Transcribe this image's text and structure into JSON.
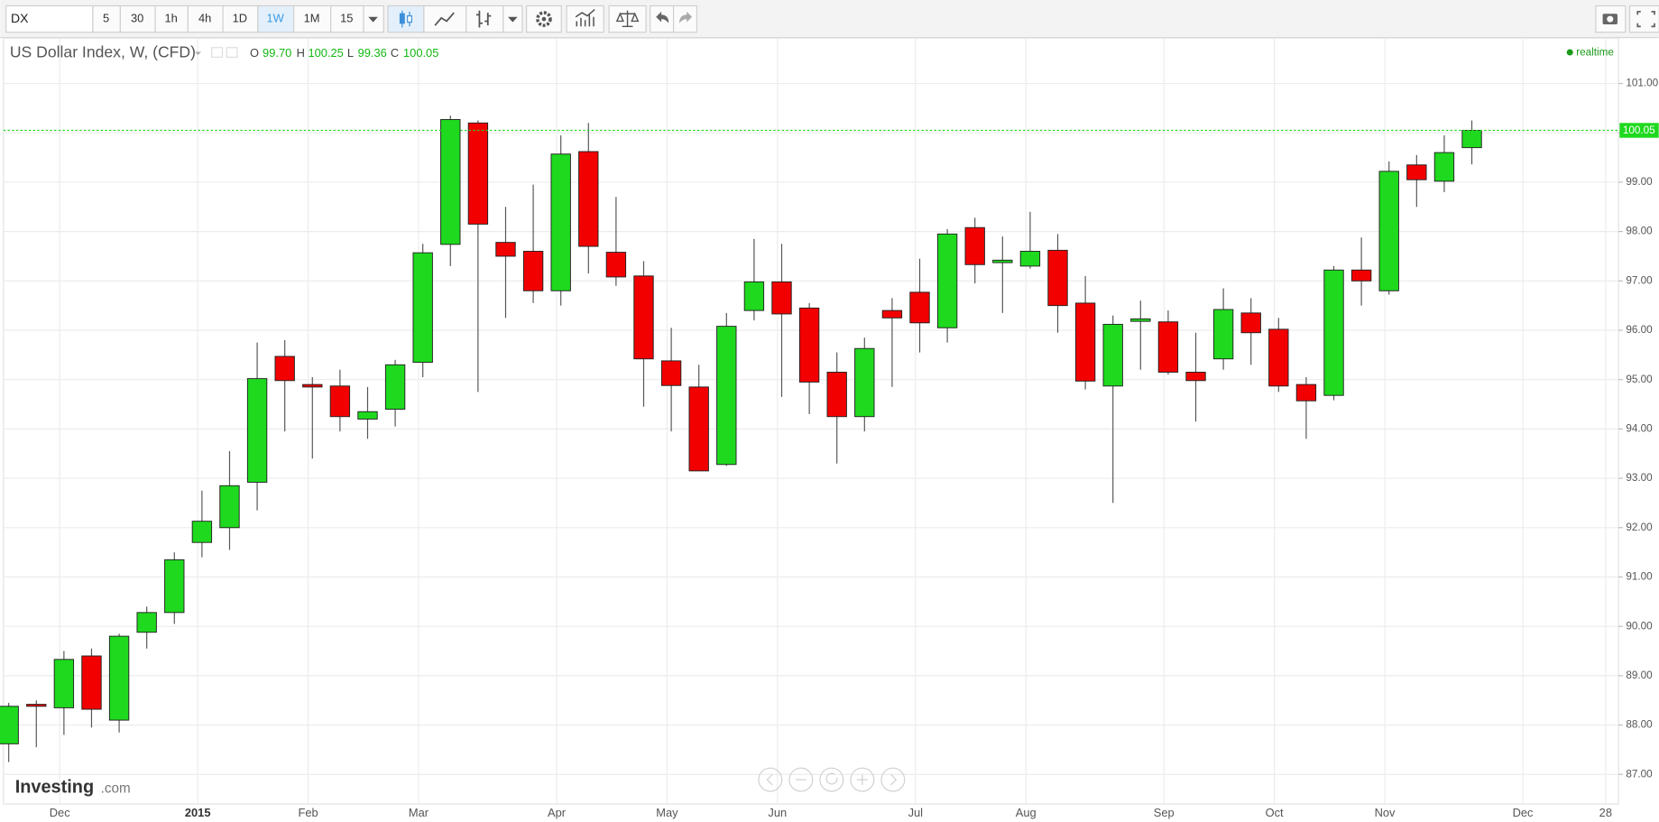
{
  "toolbar": {
    "symbol": "DX",
    "intervals": [
      "5",
      "30",
      "1h",
      "4h",
      "1D",
      "1W",
      "1M",
      "15"
    ],
    "active_interval": "1W"
  },
  "logo": {
    "brand": "Investing",
    "suffix": ".com"
  },
  "chart_data": {
    "type": "candlestick",
    "title": "US Dollar Index, W, (CFD)",
    "ohlc_legend": [
      {
        "label": "O",
        "value": "99.70"
      },
      {
        "label": "H",
        "value": "100.25"
      },
      {
        "label": "L",
        "value": "99.36"
      },
      {
        "label": "C",
        "value": "100.05"
      }
    ],
    "status": "realtime",
    "categories": [
      null,
      null,
      "Dec",
      null,
      null,
      null,
      null,
      "2015",
      null,
      null,
      null,
      "Feb",
      null,
      null,
      null,
      "Mar",
      null,
      null,
      null,
      null,
      "Apr",
      null,
      null,
      null,
      "May",
      null,
      null,
      null,
      "Jun",
      null,
      null,
      null,
      null,
      "Jul",
      null,
      null,
      null,
      "Aug",
      null,
      null,
      null,
      null,
      "Sep",
      null,
      null,
      null,
      "Oct",
      null,
      null,
      null,
      "Nov",
      null,
      null,
      null,
      null,
      "Dec",
      null,
      null,
      "28"
    ],
    "open": [
      87.62,
      88.42,
      88.35,
      89.4,
      88.1,
      89.88,
      90.28,
      91.7,
      92.0,
      92.92,
      95.47,
      94.9,
      94.87,
      94.2,
      94.4,
      95.35,
      97.74,
      100.2,
      97.78,
      97.6,
      96.8,
      99.62,
      97.58,
      97.1,
      95.38,
      94.85,
      93.28,
      96.4,
      96.98,
      96.45,
      95.15,
      94.25,
      96.4,
      96.77,
      96.05,
      98.08,
      97.37,
      97.3,
      97.62,
      96.55,
      94.87,
      96.18,
      96.17,
      95.15,
      95.42,
      96.35,
      96.02,
      94.9,
      94.68,
      97.22,
      96.8,
      99.35,
      99.02,
      99.7,
      null,
      null,
      null,
      null,
      null
    ],
    "high": [
      88.45,
      88.5,
      89.5,
      89.55,
      89.85,
      90.4,
      91.5,
      92.75,
      93.55,
      95.75,
      95.8,
      95.05,
      95.2,
      94.85,
      95.4,
      97.75,
      100.35,
      100.25,
      98.5,
      98.95,
      99.95,
      100.2,
      98.7,
      97.4,
      96.05,
      95.3,
      96.35,
      97.85,
      97.75,
      96.55,
      95.55,
      95.85,
      96.65,
      97.45,
      98.05,
      98.28,
      97.9,
      98.4,
      97.95,
      97.1,
      96.3,
      96.6,
      96.4,
      95.95,
      96.85,
      96.65,
      96.25,
      95.05,
      97.3,
      97.88,
      99.42,
      99.55,
      99.95,
      100.25,
      null,
      null,
      null,
      null,
      null
    ],
    "low": [
      87.25,
      87.55,
      87.8,
      87.95,
      87.85,
      89.55,
      90.05,
      91.4,
      91.55,
      92.35,
      93.95,
      93.4,
      93.95,
      93.8,
      94.05,
      95.05,
      97.3,
      94.75,
      96.25,
      96.55,
      96.5,
      97.15,
      96.9,
      94.45,
      93.95,
      93.15,
      93.25,
      96.2,
      94.65,
      94.3,
      93.3,
      93.95,
      94.85,
      95.55,
      95.75,
      96.95,
      96.35,
      97.25,
      95.95,
      94.8,
      92.5,
      95.2,
      95.1,
      94.15,
      95.2,
      95.3,
      94.75,
      93.8,
      94.58,
      96.5,
      96.72,
      98.5,
      98.8,
      99.36,
      null,
      null,
      null,
      null,
      null
    ],
    "close": [
      88.38,
      88.38,
      89.33,
      88.32,
      89.8,
      90.28,
      91.35,
      92.13,
      92.85,
      95.02,
      94.98,
      94.85,
      94.25,
      94.35,
      95.3,
      97.57,
      100.27,
      98.15,
      97.5,
      96.8,
      99.57,
      97.7,
      97.08,
      95.42,
      94.88,
      93.15,
      96.08,
      96.98,
      96.33,
      94.95,
      94.25,
      95.63,
      96.25,
      96.15,
      97.95,
      97.33,
      97.42,
      97.6,
      96.5,
      94.97,
      96.12,
      96.23,
      95.15,
      94.98,
      96.42,
      95.95,
      94.87,
      94.57,
      97.22,
      97.0,
      99.22,
      99.05,
      99.6,
      100.05,
      null,
      null,
      null,
      null,
      null
    ],
    "up_color": "#1ed91e",
    "down_color": "#f20000",
    "last_price": 100.05,
    "ylim": [
      86.4,
      101.92
    ],
    "yticks": [
      {
        "value": 87,
        "label": "87.00"
      },
      {
        "value": 88,
        "label": "88.00"
      },
      {
        "value": 89,
        "label": "89.00"
      },
      {
        "value": 90,
        "label": "90.00"
      },
      {
        "value": 91,
        "label": "91.00"
      },
      {
        "value": 92,
        "label": "92.00"
      },
      {
        "value": 93,
        "label": "93.00"
      },
      {
        "value": 94,
        "label": "94.00"
      },
      {
        "value": 95,
        "label": "95.00"
      },
      {
        "value": 96,
        "label": "96.00"
      },
      {
        "value": 97,
        "label": "97.00"
      },
      {
        "value": 98,
        "label": "98.00"
      },
      {
        "value": 99,
        "label": "99.00"
      },
      {
        "value": 100,
        "label": "100.00"
      },
      {
        "value": 101,
        "label": "101.00"
      }
    ],
    "grid": true
  }
}
